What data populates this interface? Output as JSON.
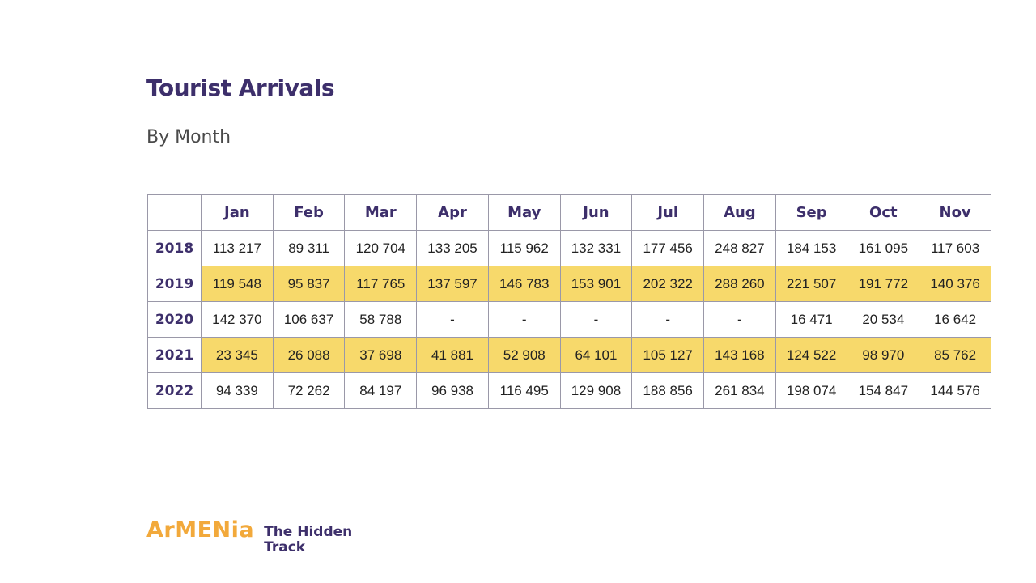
{
  "header": {
    "title": "Tourist Arrivals",
    "subtitle": "By Month"
  },
  "chart_data": {
    "type": "table",
    "title": "Tourist Arrivals",
    "subtitle": "By Month",
    "columns": [
      "Jan",
      "Feb",
      "Mar",
      "Apr",
      "May",
      "Jun",
      "Jul",
      "Aug",
      "Sep",
      "Oct",
      "Nov"
    ],
    "rows": [
      {
        "year": "2018",
        "highlight": false,
        "values": [
          "113 217",
          "89 311",
          "120 704",
          "133 205",
          "115 962",
          "132 331",
          "177 456",
          "248 827",
          "184 153",
          "161 095",
          "117 603"
        ]
      },
      {
        "year": "2019",
        "highlight": true,
        "values": [
          "119 548",
          "95 837",
          "117 765",
          "137 597",
          "146 783",
          "153 901",
          "202 322",
          "288 260",
          "221 507",
          "191 772",
          "140 376"
        ]
      },
      {
        "year": "2020",
        "highlight": false,
        "values": [
          "142 370",
          "106 637",
          "58 788",
          "-",
          "-",
          "-",
          "-",
          "-",
          "16 471",
          "20 534",
          "16 642"
        ]
      },
      {
        "year": "2021",
        "highlight": true,
        "values": [
          "23 345",
          "26 088",
          "37 698",
          "41 881",
          "52 908",
          "64 101",
          "105 127",
          "143 168",
          "124 522",
          "98 970",
          "85 762"
        ]
      },
      {
        "year": "2022",
        "highlight": false,
        "values": [
          "94 339",
          "72 262",
          "84 197",
          "96 938",
          "116 495",
          "129 908",
          "188 856",
          "261 834",
          "198 074",
          "154 847",
          "144 576"
        ]
      }
    ],
    "highlight_color": "#f7d96b"
  },
  "brand": {
    "name": "ArMENia",
    "tagline_line1": "The Hidden",
    "tagline_line2": "Track",
    "name_color": "#f2a93b",
    "tagline_color": "#3d2f6b"
  }
}
